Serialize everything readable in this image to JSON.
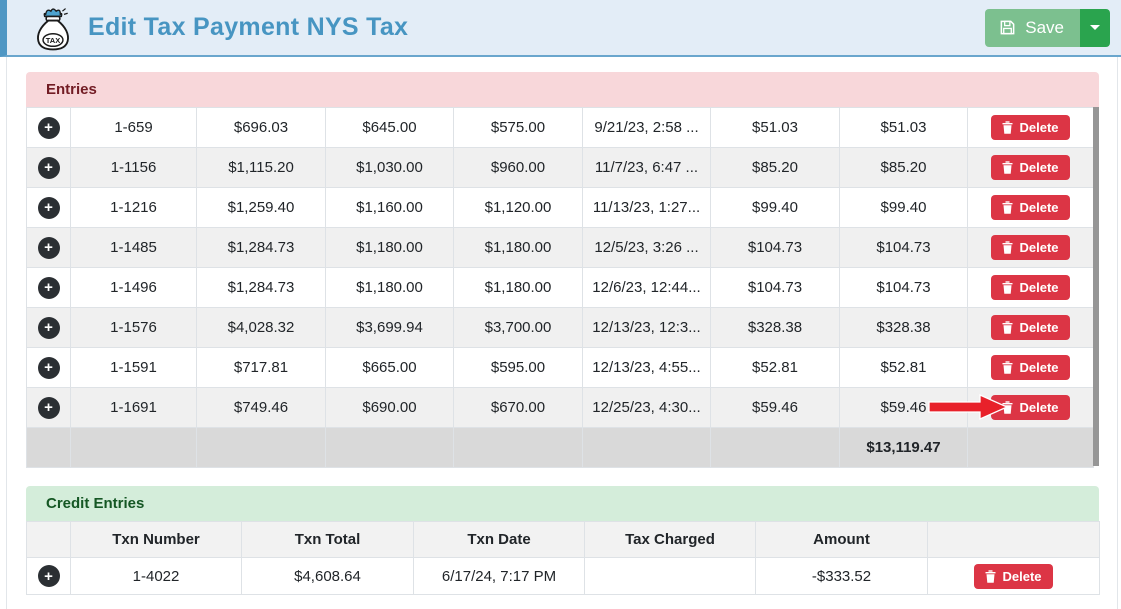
{
  "header": {
    "title": "Edit Tax Payment NYS Tax",
    "save_label": "Save",
    "icon": "tax-money-bag"
  },
  "entries": {
    "title": "Entries",
    "delete_label": "Delete",
    "rows": [
      [
        "1-659",
        "$696.03",
        "$645.00",
        "$575.00",
        "9/21/23, 2:58 ...",
        "$51.03",
        "$51.03"
      ],
      [
        "1-1156",
        "$1,115.20",
        "$1,030.00",
        "$960.00",
        "11/7/23, 6:47 ...",
        "$85.20",
        "$85.20"
      ],
      [
        "1-1216",
        "$1,259.40",
        "$1,160.00",
        "$1,120.00",
        "11/13/23, 1:27...",
        "$99.40",
        "$99.40"
      ],
      [
        "1-1485",
        "$1,284.73",
        "$1,180.00",
        "$1,180.00",
        "12/5/23, 3:26 ...",
        "$104.73",
        "$104.73"
      ],
      [
        "1-1496",
        "$1,284.73",
        "$1,180.00",
        "$1,180.00",
        "12/6/23, 12:44...",
        "$104.73",
        "$104.73"
      ],
      [
        "1-1576",
        "$4,028.32",
        "$3,699.94",
        "$3,700.00",
        "12/13/23, 12:3...",
        "$328.38",
        "$328.38"
      ],
      [
        "1-1591",
        "$717.81",
        "$665.00",
        "$595.00",
        "12/13/23, 4:55...",
        "$52.81",
        "$52.81"
      ],
      [
        "1-1691",
        "$749.46",
        "$690.00",
        "$670.00",
        "12/25/23, 4:30...",
        "$59.46",
        "$59.46"
      ]
    ],
    "total_amount": "$13,119.47",
    "annotation": "red arrow pointing at Delete button of row 1-1691"
  },
  "credit_entries": {
    "title": "Credit Entries",
    "delete_label": "Delete",
    "columns": [
      "Txn Number",
      "Txn Total",
      "Txn Date",
      "Tax Charged",
      "Amount"
    ],
    "rows": [
      [
        "1-4022",
        "$4,608.64",
        "6/17/24, 7:17 PM",
        "",
        "-$333.52"
      ]
    ]
  },
  "colors": {
    "accent_blue": "#4f97c4",
    "topbar_bg": "#e3edf7",
    "title_text": "#4795c2",
    "save_green": "#7cc08f",
    "save_toggle_green": "#2aa44e",
    "entries_header_bg": "#f8d7da",
    "entries_header_text": "#721c24",
    "credit_header_bg": "#d4edda",
    "credit_header_text": "#155724",
    "delete_red": "#dc3545",
    "row_stripe": "#f0f0f0",
    "total_row_bg": "#d9d9d9",
    "arrow_red": "#e8212a"
  }
}
